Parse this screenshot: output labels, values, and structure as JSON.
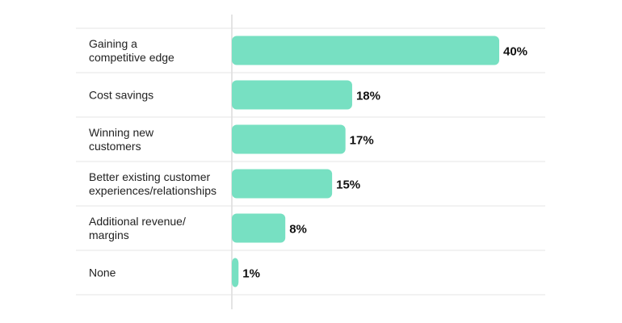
{
  "chart_data": {
    "type": "bar",
    "orientation": "horizontal",
    "categories": [
      [
        "Gaining a",
        "competitive edge"
      ],
      [
        "Cost savings"
      ],
      [
        "Winning new",
        "customers"
      ],
      [
        "Better existing customer",
        "experiences/relationships"
      ],
      [
        "Additional revenue/",
        "margins"
      ],
      [
        "None"
      ]
    ],
    "values": [
      40,
      18,
      17,
      15,
      8,
      1
    ],
    "value_labels": [
      "40%",
      "18%",
      "17%",
      "15%",
      "8%",
      "1%"
    ],
    "xlim": [
      0,
      40
    ],
    "bar_color": "#77e0c2",
    "grid": "horizontal row separators",
    "legend": "none"
  }
}
